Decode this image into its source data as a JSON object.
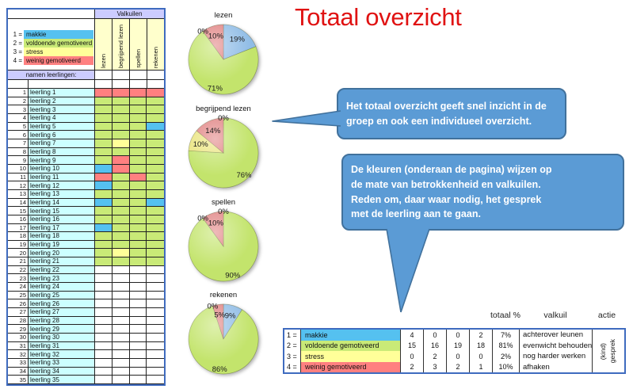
{
  "title": {
    "text": "Totaal overzicht",
    "color": "#E01212"
  },
  "columns": [
    "lezen",
    "begrijpend lezen",
    "spellen",
    "rekenen"
  ],
  "left_table": {
    "header": "Valkuilen",
    "names_header": "namen leerlingen:",
    "legend": [
      {
        "num": "1 =",
        "label": "makkie",
        "key": "makkie"
      },
      {
        "num": "2 =",
        "label": "voldoende gemotiveerd",
        "key": "voldoende"
      },
      {
        "num": "3 =",
        "label": "stress",
        "key": "stress"
      },
      {
        "num": "4 =",
        "label": "weinig gemotiveerd",
        "key": "weinig"
      }
    ],
    "value_codes": {
      "0": "empty",
      "1": "makkie",
      "2": "voldoende",
      "3": "stress",
      "4": "weinig"
    },
    "students": [
      {
        "nr": 1,
        "name": "leerling 1",
        "values": [
          4,
          4,
          4,
          4
        ]
      },
      {
        "nr": 2,
        "name": "leerling 2",
        "values": [
          2,
          2,
          2,
          2
        ]
      },
      {
        "nr": 3,
        "name": "leerling 3",
        "values": [
          2,
          2,
          2,
          2
        ]
      },
      {
        "nr": 4,
        "name": "leerling 4",
        "values": [
          2,
          2,
          2,
          2
        ]
      },
      {
        "nr": 5,
        "name": "leerling 5",
        "values": [
          2,
          2,
          2,
          1
        ]
      },
      {
        "nr": 6,
        "name": "leerling 6",
        "values": [
          2,
          2,
          2,
          2
        ]
      },
      {
        "nr": 7,
        "name": "leerling 7",
        "values": [
          2,
          3,
          2,
          2
        ]
      },
      {
        "nr": 8,
        "name": "leerling 8",
        "values": [
          2,
          2,
          2,
          2
        ]
      },
      {
        "nr": 9,
        "name": "leerling 9",
        "values": [
          2,
          4,
          2,
          2
        ]
      },
      {
        "nr": 10,
        "name": "leerling 10",
        "values": [
          1,
          4,
          2,
          2
        ]
      },
      {
        "nr": 11,
        "name": "leerling 11",
        "values": [
          4,
          2,
          4,
          2
        ]
      },
      {
        "nr": 12,
        "name": "leerling 12",
        "values": [
          1,
          2,
          2,
          2
        ]
      },
      {
        "nr": 13,
        "name": "leerling 13",
        "values": [
          2,
          2,
          2,
          2
        ]
      },
      {
        "nr": 14,
        "name": "leerling 14",
        "values": [
          1,
          2,
          2,
          1
        ]
      },
      {
        "nr": 15,
        "name": "leerling 15",
        "values": [
          2,
          2,
          2,
          2
        ]
      },
      {
        "nr": 16,
        "name": "leerling 16",
        "values": [
          2,
          2,
          2,
          2
        ]
      },
      {
        "nr": 17,
        "name": "leerling 17",
        "values": [
          1,
          2,
          2,
          2
        ]
      },
      {
        "nr": 18,
        "name": "leerling 18",
        "values": [
          2,
          2,
          2,
          2
        ]
      },
      {
        "nr": 19,
        "name": "leerling 19",
        "values": [
          2,
          2,
          2,
          2
        ]
      },
      {
        "nr": 20,
        "name": "leerling 20",
        "values": [
          2,
          3,
          2,
          2
        ]
      },
      {
        "nr": 21,
        "name": "leerling 21",
        "values": [
          2,
          2,
          2,
          2
        ]
      },
      {
        "nr": 22,
        "name": "leerling 22",
        "values": [
          0,
          0,
          0,
          0
        ]
      },
      {
        "nr": 23,
        "name": "leerling 23",
        "values": [
          0,
          0,
          0,
          0
        ]
      },
      {
        "nr": 24,
        "name": "leerling 24",
        "values": [
          0,
          0,
          0,
          0
        ]
      },
      {
        "nr": 25,
        "name": "leerling 25",
        "values": [
          0,
          0,
          0,
          0
        ]
      },
      {
        "nr": 26,
        "name": "leerling 26",
        "values": [
          0,
          0,
          0,
          0
        ]
      },
      {
        "nr": 27,
        "name": "leerling 27",
        "values": [
          0,
          0,
          0,
          0
        ]
      },
      {
        "nr": 28,
        "name": "leerling 28",
        "values": [
          0,
          0,
          0,
          0
        ]
      },
      {
        "nr": 29,
        "name": "leerling 29",
        "values": [
          0,
          0,
          0,
          0
        ]
      },
      {
        "nr": 30,
        "name": "leerling 30",
        "values": [
          0,
          0,
          0,
          0
        ]
      },
      {
        "nr": 31,
        "name": "leerling 31",
        "values": [
          0,
          0,
          0,
          0
        ]
      },
      {
        "nr": 32,
        "name": "leerling 32",
        "values": [
          0,
          0,
          0,
          0
        ]
      },
      {
        "nr": 33,
        "name": "leerling 33",
        "values": [
          0,
          0,
          0,
          0
        ]
      },
      {
        "nr": 34,
        "name": "leerling 34",
        "values": [
          0,
          0,
          0,
          0
        ]
      },
      {
        "nr": 35,
        "name": "leerling 35",
        "values": [
          0,
          0,
          0,
          0
        ]
      }
    ]
  },
  "chart_data": [
    {
      "type": "pie",
      "title": "lezen",
      "labels": [
        "makkie",
        "voldoende gemotiveerd",
        "stress",
        "weinig gemotiveerd"
      ],
      "values": [
        19,
        71,
        0,
        10
      ],
      "unit": "%",
      "legend_position": "none"
    },
    {
      "type": "pie",
      "title": "begrijpend lezen",
      "labels": [
        "makkie",
        "voldoende gemotiveerd",
        "stress",
        "weinig gemotiveerd"
      ],
      "values": [
        0,
        76,
        10,
        14
      ],
      "unit": "%",
      "legend_position": "none"
    },
    {
      "type": "pie",
      "title": "spellen",
      "labels": [
        "makkie",
        "voldoende gemotiveerd",
        "stress",
        "weinig gemotiveerd"
      ],
      "values": [
        0,
        90,
        0,
        10
      ],
      "unit": "%",
      "legend_position": "none"
    },
    {
      "type": "pie",
      "title": "rekenen",
      "labels": [
        "makkie",
        "voldoende gemotiveerd",
        "stress",
        "weinig gemotiveerd"
      ],
      "values": [
        9,
        86,
        0,
        5
      ],
      "unit": "%",
      "legend_position": "none"
    }
  ],
  "bubbles": [
    {
      "text": "Het totaal overzicht geeft snel inzicht in de\ngroep en ook een individueel overzicht."
    },
    {
      "text": "De kleuren (onderaan de pagina) wijzen op\nde mate van betrokkenheid en valkuilen.\nReden om, daar waar nodig, het gesprek\nmet de leerling aan te gaan."
    }
  ],
  "summary": {
    "headers": [
      "totaal %",
      "valkuil",
      "actie"
    ],
    "rows": [
      {
        "num": "1 =",
        "label": "makkie",
        "key": "makkie",
        "counts": [
          4,
          0,
          0,
          2
        ],
        "total": "7%",
        "valkuil": "achterover leunen"
      },
      {
        "num": "2 =",
        "label": "voldoende gemotiveerd",
        "key": "voldoende",
        "counts": [
          15,
          16,
          19,
          18
        ],
        "total": "81%",
        "valkuil": "evenwicht behouden"
      },
      {
        "num": "3 =",
        "label": "stress",
        "key": "stress",
        "counts": [
          0,
          2,
          0,
          0
        ],
        "total": "2%",
        "valkuil": "nog harder werken"
      },
      {
        "num": "4 =",
        "label": "weinig gemotiveerd",
        "key": "weinig",
        "counts": [
          2,
          3,
          2,
          1
        ],
        "total": "10%",
        "valkuil": "afhaken"
      }
    ],
    "actie_text": "(kind)\ngesprek"
  },
  "colors": {
    "makkie": "#55C1F0",
    "voldoende": "#C9EA77",
    "stress": "#FFFF99",
    "weinig": "#FF8080",
    "empty": "#FFFFFF",
    "pie": {
      "makkie": "#8FBCE6",
      "voldoende": "#C3E46C",
      "stress": "#EAE47C",
      "weinig": "#E08080"
    },
    "lavender": "#CCCCFF",
    "name_bg": "#CCFFFF",
    "col_header_bg": "#FFFFCC",
    "table_border": "#3F6BBF",
    "grid_line": "#222222",
    "bubble_fill": "#5B9BD5",
    "bubble_border": "#41719C",
    "title_red": "#E01212"
  }
}
